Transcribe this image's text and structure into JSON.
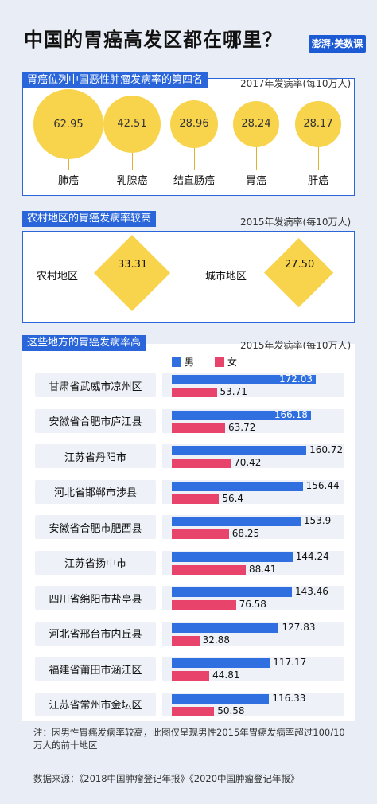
{
  "title": "中国的胃癌高发区都在哪里？",
  "logo": "澎湃·美数课",
  "chart_data": [
    {
      "type": "bubble",
      "title": "胃癌位列中国恶性肿瘤发病率的第四名",
      "note": "2017年发病率(每10万人)",
      "categories": [
        "肺癌",
        "乳腺癌",
        "结直肠癌",
        "胃癌",
        "肝癌"
      ],
      "values": [
        62.95,
        42.51,
        28.96,
        28.24,
        28.17
      ],
      "value_labels": [
        "62.95",
        "42.51",
        "28.96",
        "28.24",
        "28.17"
      ],
      "color": "#f8d34c"
    },
    {
      "type": "diamond",
      "title": "农村地区的胃癌发病率较高",
      "note": "2015年发病率(每10万人)",
      "categories": [
        "农村地区",
        "城市地区"
      ],
      "values": [
        33.31,
        27.5
      ],
      "value_labels": [
        "33.31",
        "27.50"
      ],
      "color": "#f8d34c"
    },
    {
      "type": "bar",
      "orientation": "horizontal",
      "title": "这些地方的胃癌发病率高",
      "note": "2015年发病率(每10万人)",
      "legend": [
        {
          "name": "男",
          "color": "#2f6fe0"
        },
        {
          "name": "女",
          "color": "#e8436a"
        }
      ],
      "categories": [
        "甘肃省武威市凉州区",
        "安徽省合肥市庐江县",
        "江苏省丹阳市",
        "河北省邯郸市涉县",
        "安徽省合肥市肥西县",
        "江苏省扬中市",
        "四川省绵阳市盐亭县",
        "河北省邢台市内丘县",
        "福建省莆田市涵江区",
        "江苏省常州市金坛区"
      ],
      "series": [
        {
          "name": "男",
          "values": [
            172.03,
            166.18,
            160.72,
            156.44,
            153.9,
            144.24,
            143.46,
            127.83,
            117.17,
            116.33
          ],
          "labels": [
            "172.03",
            "166.18",
            "160.72",
            "156.44",
            "153.9",
            "144.24",
            "143.46",
            "127.83",
            "117.17",
            "116.33"
          ]
        },
        {
          "name": "女",
          "values": [
            53.71,
            63.72,
            70.42,
            56.4,
            68.25,
            88.41,
            76.58,
            32.88,
            44.81,
            50.58
          ],
          "labels": [
            "53.71",
            "63.72",
            "70.42",
            "56.4",
            "68.25",
            "88.41",
            "76.58",
            "32.88",
            "44.81",
            "50.58"
          ]
        }
      ],
      "xlim": [
        0,
        172.03
      ]
    }
  ],
  "footnote": "注：因男性胃癌发病率较高，此图仅呈现男性2015年胃癌发病率超过100/10万人的前十地区",
  "source": "数据来源：《2018中国肿瘤登记年报》《2020中国肿瘤登记年报》"
}
